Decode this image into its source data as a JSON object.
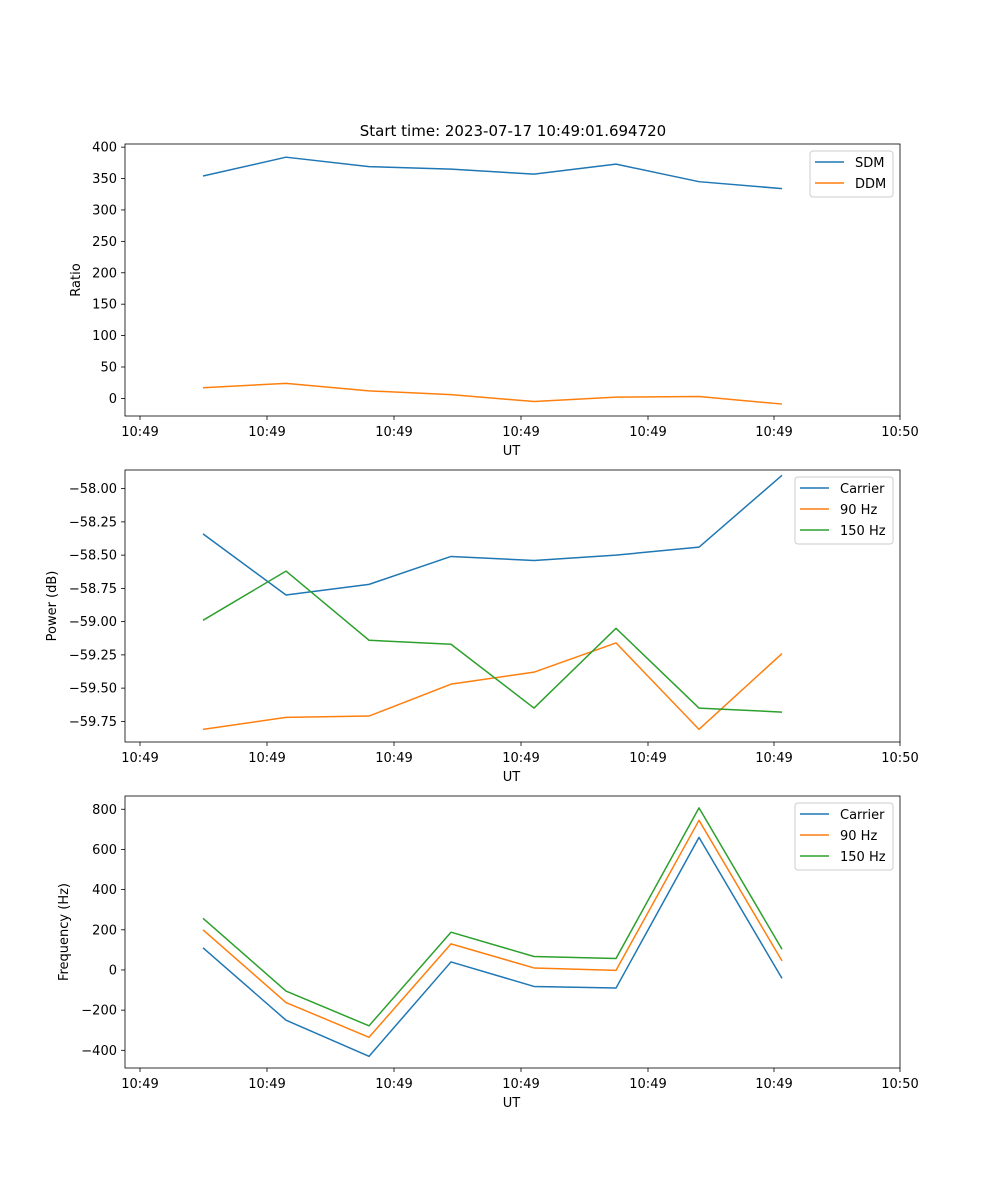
{
  "chart_data": [
    {
      "type": "line",
      "title": "Start time: 2023-07-17 10:49:01.694720",
      "xlabel": "UT",
      "ylabel": "Ratio",
      "x_tick_labels": [
        "10:49",
        "10:49",
        "10:49",
        "10:49",
        "10:49",
        "10:49",
        "10:50"
      ],
      "y_ticks": [
        0,
        50,
        100,
        150,
        200,
        250,
        300,
        350,
        400
      ],
      "ylim": [
        -28,
        405
      ],
      "legend_position": "top-right",
      "series": [
        {
          "name": "SDM",
          "color": "#1f77b4",
          "values": [
            354,
            384,
            369,
            365,
            357,
            373,
            345,
            334
          ]
        },
        {
          "name": "DDM",
          "color": "#ff7f0e",
          "values": [
            17,
            24,
            12,
            6,
            -5,
            2,
            3,
            -9
          ]
        }
      ]
    },
    {
      "type": "line",
      "title": "",
      "xlabel": "UT",
      "ylabel": "Power (dB)",
      "x_tick_labels": [
        "10:49",
        "10:49",
        "10:49",
        "10:49",
        "10:49",
        "10:49",
        "10:50"
      ],
      "y_ticks": [
        "−58.00",
        "−58.25",
        "−58.50",
        "−58.75",
        "−59.00",
        "−59.25",
        "−59.50",
        "−59.75"
      ],
      "y_tick_values": [
        -58.0,
        -58.25,
        -58.5,
        -58.75,
        -59.0,
        -59.25,
        -59.5,
        -59.75
      ],
      "ylim": [
        -59.905,
        -57.86
      ],
      "legend_position": "top-right",
      "series": [
        {
          "name": "Carrier",
          "color": "#1f77b4",
          "values": [
            -58.34,
            -58.8,
            -58.72,
            -58.51,
            -58.54,
            -58.5,
            -58.44,
            -57.9
          ]
        },
        {
          "name": "90 Hz",
          "color": "#ff7f0e",
          "values": [
            -59.81,
            -59.72,
            -59.71,
            -59.47,
            -59.38,
            -59.16,
            -59.81,
            -59.24
          ]
        },
        {
          "name": "150 Hz",
          "color": "#2ca02c",
          "values": [
            -58.99,
            -58.62,
            -59.14,
            -59.17,
            -59.65,
            -59.05,
            -59.65,
            -59.68
          ]
        }
      ]
    },
    {
      "type": "line",
      "title": "",
      "xlabel": "UT",
      "ylabel": "Frequency (Hz)",
      "x_tick_labels": [
        "10:49",
        "10:49",
        "10:49",
        "10:49",
        "10:49",
        "10:49",
        "10:50"
      ],
      "y_ticks": [
        "−400",
        "−200",
        "0",
        "200",
        "400",
        "600",
        "800"
      ],
      "y_tick_values": [
        -400,
        -200,
        0,
        200,
        400,
        600,
        800
      ],
      "ylim": [
        -488,
        866
      ],
      "legend_position": "top-right",
      "series": [
        {
          "name": "Carrier",
          "color": "#1f77b4",
          "values": [
            110,
            -250,
            -430,
            40,
            -82,
            -90,
            660,
            -42
          ]
        },
        {
          "name": "90 Hz",
          "color": "#ff7f0e",
          "values": [
            200,
            -162,
            -335,
            130,
            10,
            -2,
            745,
            45
          ]
        },
        {
          "name": "150 Hz",
          "color": "#2ca02c",
          "values": [
            257,
            -105,
            -278,
            188,
            67,
            57,
            807,
            103
          ]
        }
      ]
    }
  ]
}
